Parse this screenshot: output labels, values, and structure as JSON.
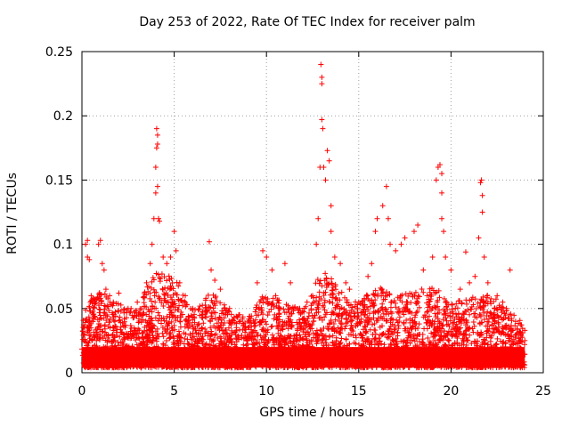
{
  "chart_data": {
    "type": "scatter",
    "title": "Day 253 of 2022, Rate Of TEC Index for receiver palm",
    "xlabel": "GPS time / hours",
    "ylabel": "ROTI / TECUs",
    "xlim": [
      0,
      25
    ],
    "ylim": [
      0,
      0.25
    ],
    "xticks": [
      "0",
      "5",
      "10",
      "15",
      "20",
      "25"
    ],
    "yticks": [
      "0",
      "0.05",
      "0.1",
      "0.15",
      "0.2",
      "0.25"
    ],
    "grid": true,
    "marker": "+",
    "color": "#ff0000",
    "series": [
      {
        "points": [
          [
            0.1,
            0.03
          ],
          [
            0.2,
            0.1
          ],
          [
            0.3,
            0.103
          ],
          [
            0.3,
            0.09
          ],
          [
            0.4,
            0.088
          ],
          [
            0.5,
            0.06
          ],
          [
            0.6,
            0.045
          ],
          [
            0.9,
            0.1
          ],
          [
            1.0,
            0.103
          ],
          [
            1.1,
            0.085
          ],
          [
            1.2,
            0.08
          ],
          [
            1.3,
            0.065
          ],
          [
            1.5,
            0.06
          ],
          [
            1.7,
            0.055
          ],
          [
            2.0,
            0.062
          ],
          [
            2.5,
            0.05
          ],
          [
            3.0,
            0.055
          ],
          [
            3.5,
            0.07
          ],
          [
            3.7,
            0.085
          ],
          [
            3.8,
            0.1
          ],
          [
            3.9,
            0.12
          ],
          [
            4.0,
            0.14
          ],
          [
            4.0,
            0.16
          ],
          [
            4.05,
            0.175
          ],
          [
            4.05,
            0.19
          ],
          [
            4.1,
            0.185
          ],
          [
            4.1,
            0.178
          ],
          [
            4.1,
            0.145
          ],
          [
            4.15,
            0.12
          ],
          [
            4.2,
            0.118
          ],
          [
            4.4,
            0.09
          ],
          [
            4.6,
            0.085
          ],
          [
            4.8,
            0.09
          ],
          [
            5.0,
            0.11
          ],
          [
            5.1,
            0.095
          ],
          [
            5.3,
            0.07
          ],
          [
            5.6,
            0.06
          ],
          [
            6.0,
            0.05
          ],
          [
            6.5,
            0.045
          ],
          [
            6.9,
            0.102
          ],
          [
            7.0,
            0.08
          ],
          [
            7.2,
            0.072
          ],
          [
            7.5,
            0.065
          ],
          [
            8.0,
            0.05
          ],
          [
            8.5,
            0.045
          ],
          [
            9.0,
            0.04
          ],
          [
            9.5,
            0.07
          ],
          [
            9.8,
            0.095
          ],
          [
            10.0,
            0.09
          ],
          [
            10.3,
            0.08
          ],
          [
            10.5,
            0.06
          ],
          [
            11.0,
            0.085
          ],
          [
            11.3,
            0.07
          ],
          [
            11.8,
            0.05
          ],
          [
            12.2,
            0.055
          ],
          [
            12.5,
            0.06
          ],
          [
            12.7,
            0.1
          ],
          [
            12.8,
            0.12
          ],
          [
            12.9,
            0.16
          ],
          [
            12.95,
            0.24
          ],
          [
            13.0,
            0.225
          ],
          [
            13.0,
            0.23
          ],
          [
            13.0,
            0.197
          ],
          [
            13.05,
            0.19
          ],
          [
            13.1,
            0.16
          ],
          [
            13.2,
            0.15
          ],
          [
            13.3,
            0.173
          ],
          [
            13.4,
            0.165
          ],
          [
            13.5,
            0.13
          ],
          [
            13.5,
            0.11
          ],
          [
            13.7,
            0.09
          ],
          [
            14.0,
            0.085
          ],
          [
            14.3,
            0.07
          ],
          [
            14.5,
            0.065
          ],
          [
            15.0,
            0.055
          ],
          [
            15.5,
            0.075
          ],
          [
            15.7,
            0.085
          ],
          [
            15.9,
            0.11
          ],
          [
            16.0,
            0.12
          ],
          [
            16.3,
            0.13
          ],
          [
            16.5,
            0.145
          ],
          [
            16.6,
            0.12
          ],
          [
            16.7,
            0.1
          ],
          [
            17.0,
            0.095
          ],
          [
            17.3,
            0.1
          ],
          [
            17.5,
            0.105
          ],
          [
            18.0,
            0.11
          ],
          [
            18.2,
            0.115
          ],
          [
            18.5,
            0.08
          ],
          [
            19.0,
            0.09
          ],
          [
            19.2,
            0.15
          ],
          [
            19.3,
            0.16
          ],
          [
            19.4,
            0.162
          ],
          [
            19.5,
            0.155
          ],
          [
            19.5,
            0.14
          ],
          [
            19.5,
            0.12
          ],
          [
            19.6,
            0.11
          ],
          [
            19.7,
            0.09
          ],
          [
            20.0,
            0.08
          ],
          [
            20.5,
            0.065
          ],
          [
            20.8,
            0.094
          ],
          [
            21.0,
            0.07
          ],
          [
            21.3,
            0.075
          ],
          [
            21.5,
            0.105
          ],
          [
            21.6,
            0.148
          ],
          [
            21.65,
            0.15
          ],
          [
            21.7,
            0.138
          ],
          [
            21.7,
            0.125
          ],
          [
            21.8,
            0.09
          ],
          [
            22.0,
            0.07
          ],
          [
            22.5,
            0.06
          ],
          [
            22.8,
            0.055
          ],
          [
            23.0,
            0.05
          ],
          [
            23.2,
            0.08
          ],
          [
            23.5,
            0.04
          ],
          [
            23.8,
            0.03
          ],
          [
            24.0,
            0.025
          ]
        ]
      }
    ]
  }
}
